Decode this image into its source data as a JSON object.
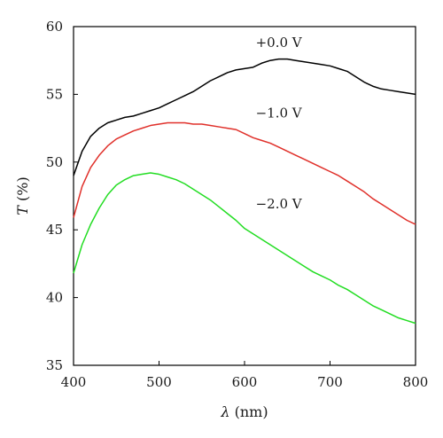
{
  "chart_data": {
    "type": "line",
    "xlabel_symbol": "λ",
    "xlabel_unit": " (nm)",
    "ylabel_symbol": "T",
    "ylabel_unit": " (%)",
    "xlim": [
      400,
      800
    ],
    "ylim": [
      35,
      60
    ],
    "x_ticks": [
      400,
      500,
      600,
      700,
      800
    ],
    "y_ticks": [
      35,
      40,
      45,
      50,
      55,
      60
    ],
    "grid": false,
    "series": [
      {
        "name": "+0.0 V",
        "color": "#000000",
        "x": [
          400,
          410,
          420,
          430,
          440,
          450,
          460,
          470,
          480,
          490,
          500,
          510,
          520,
          530,
          540,
          550,
          560,
          570,
          580,
          590,
          600,
          610,
          620,
          630,
          640,
          650,
          660,
          670,
          680,
          690,
          700,
          710,
          720,
          730,
          740,
          750,
          760,
          770,
          780,
          790,
          800
        ],
        "y": [
          49.0,
          50.8,
          51.9,
          52.5,
          52.9,
          53.1,
          53.3,
          53.4,
          53.6,
          53.8,
          54.0,
          54.3,
          54.6,
          54.9,
          55.2,
          55.6,
          56.0,
          56.3,
          56.6,
          56.8,
          56.9,
          57.0,
          57.3,
          57.5,
          57.6,
          57.6,
          57.5,
          57.4,
          57.3,
          57.2,
          57.1,
          56.9,
          56.7,
          56.3,
          55.9,
          55.6,
          55.4,
          55.3,
          55.2,
          55.1,
          55.0
        ]
      },
      {
        "name": "−1.0 V",
        "color": "#e0302a",
        "x": [
          400,
          410,
          420,
          430,
          440,
          450,
          460,
          470,
          480,
          490,
          500,
          510,
          520,
          530,
          540,
          550,
          560,
          570,
          580,
          590,
          600,
          610,
          620,
          630,
          640,
          650,
          660,
          670,
          680,
          690,
          700,
          710,
          720,
          730,
          740,
          750,
          760,
          770,
          780,
          790,
          800
        ],
        "y": [
          45.9,
          48.2,
          49.6,
          50.5,
          51.2,
          51.7,
          52.0,
          52.3,
          52.5,
          52.7,
          52.8,
          52.9,
          52.9,
          52.9,
          52.8,
          52.8,
          52.7,
          52.6,
          52.5,
          52.4,
          52.1,
          51.8,
          51.6,
          51.4,
          51.1,
          50.8,
          50.5,
          50.2,
          49.9,
          49.6,
          49.3,
          49.0,
          48.6,
          48.2,
          47.8,
          47.3,
          46.9,
          46.5,
          46.1,
          45.7,
          45.4
        ]
      },
      {
        "name": "−2.0 V",
        "color": "#22dd22",
        "x": [
          400,
          410,
          420,
          430,
          440,
          450,
          460,
          470,
          480,
          490,
          500,
          510,
          520,
          530,
          540,
          550,
          560,
          570,
          580,
          590,
          600,
          610,
          620,
          630,
          640,
          650,
          660,
          670,
          680,
          690,
          700,
          710,
          720,
          730,
          740,
          750,
          760,
          770,
          780,
          790,
          800
        ],
        "y": [
          41.8,
          43.9,
          45.4,
          46.6,
          47.6,
          48.3,
          48.7,
          49.0,
          49.1,
          49.2,
          49.1,
          48.9,
          48.7,
          48.4,
          48.0,
          47.6,
          47.2,
          46.7,
          46.2,
          45.7,
          45.1,
          44.7,
          44.3,
          43.9,
          43.5,
          43.1,
          42.7,
          42.3,
          41.9,
          41.6,
          41.3,
          40.9,
          40.6,
          40.2,
          39.8,
          39.4,
          39.1,
          38.8,
          38.5,
          38.3,
          38.1
        ]
      }
    ]
  }
}
